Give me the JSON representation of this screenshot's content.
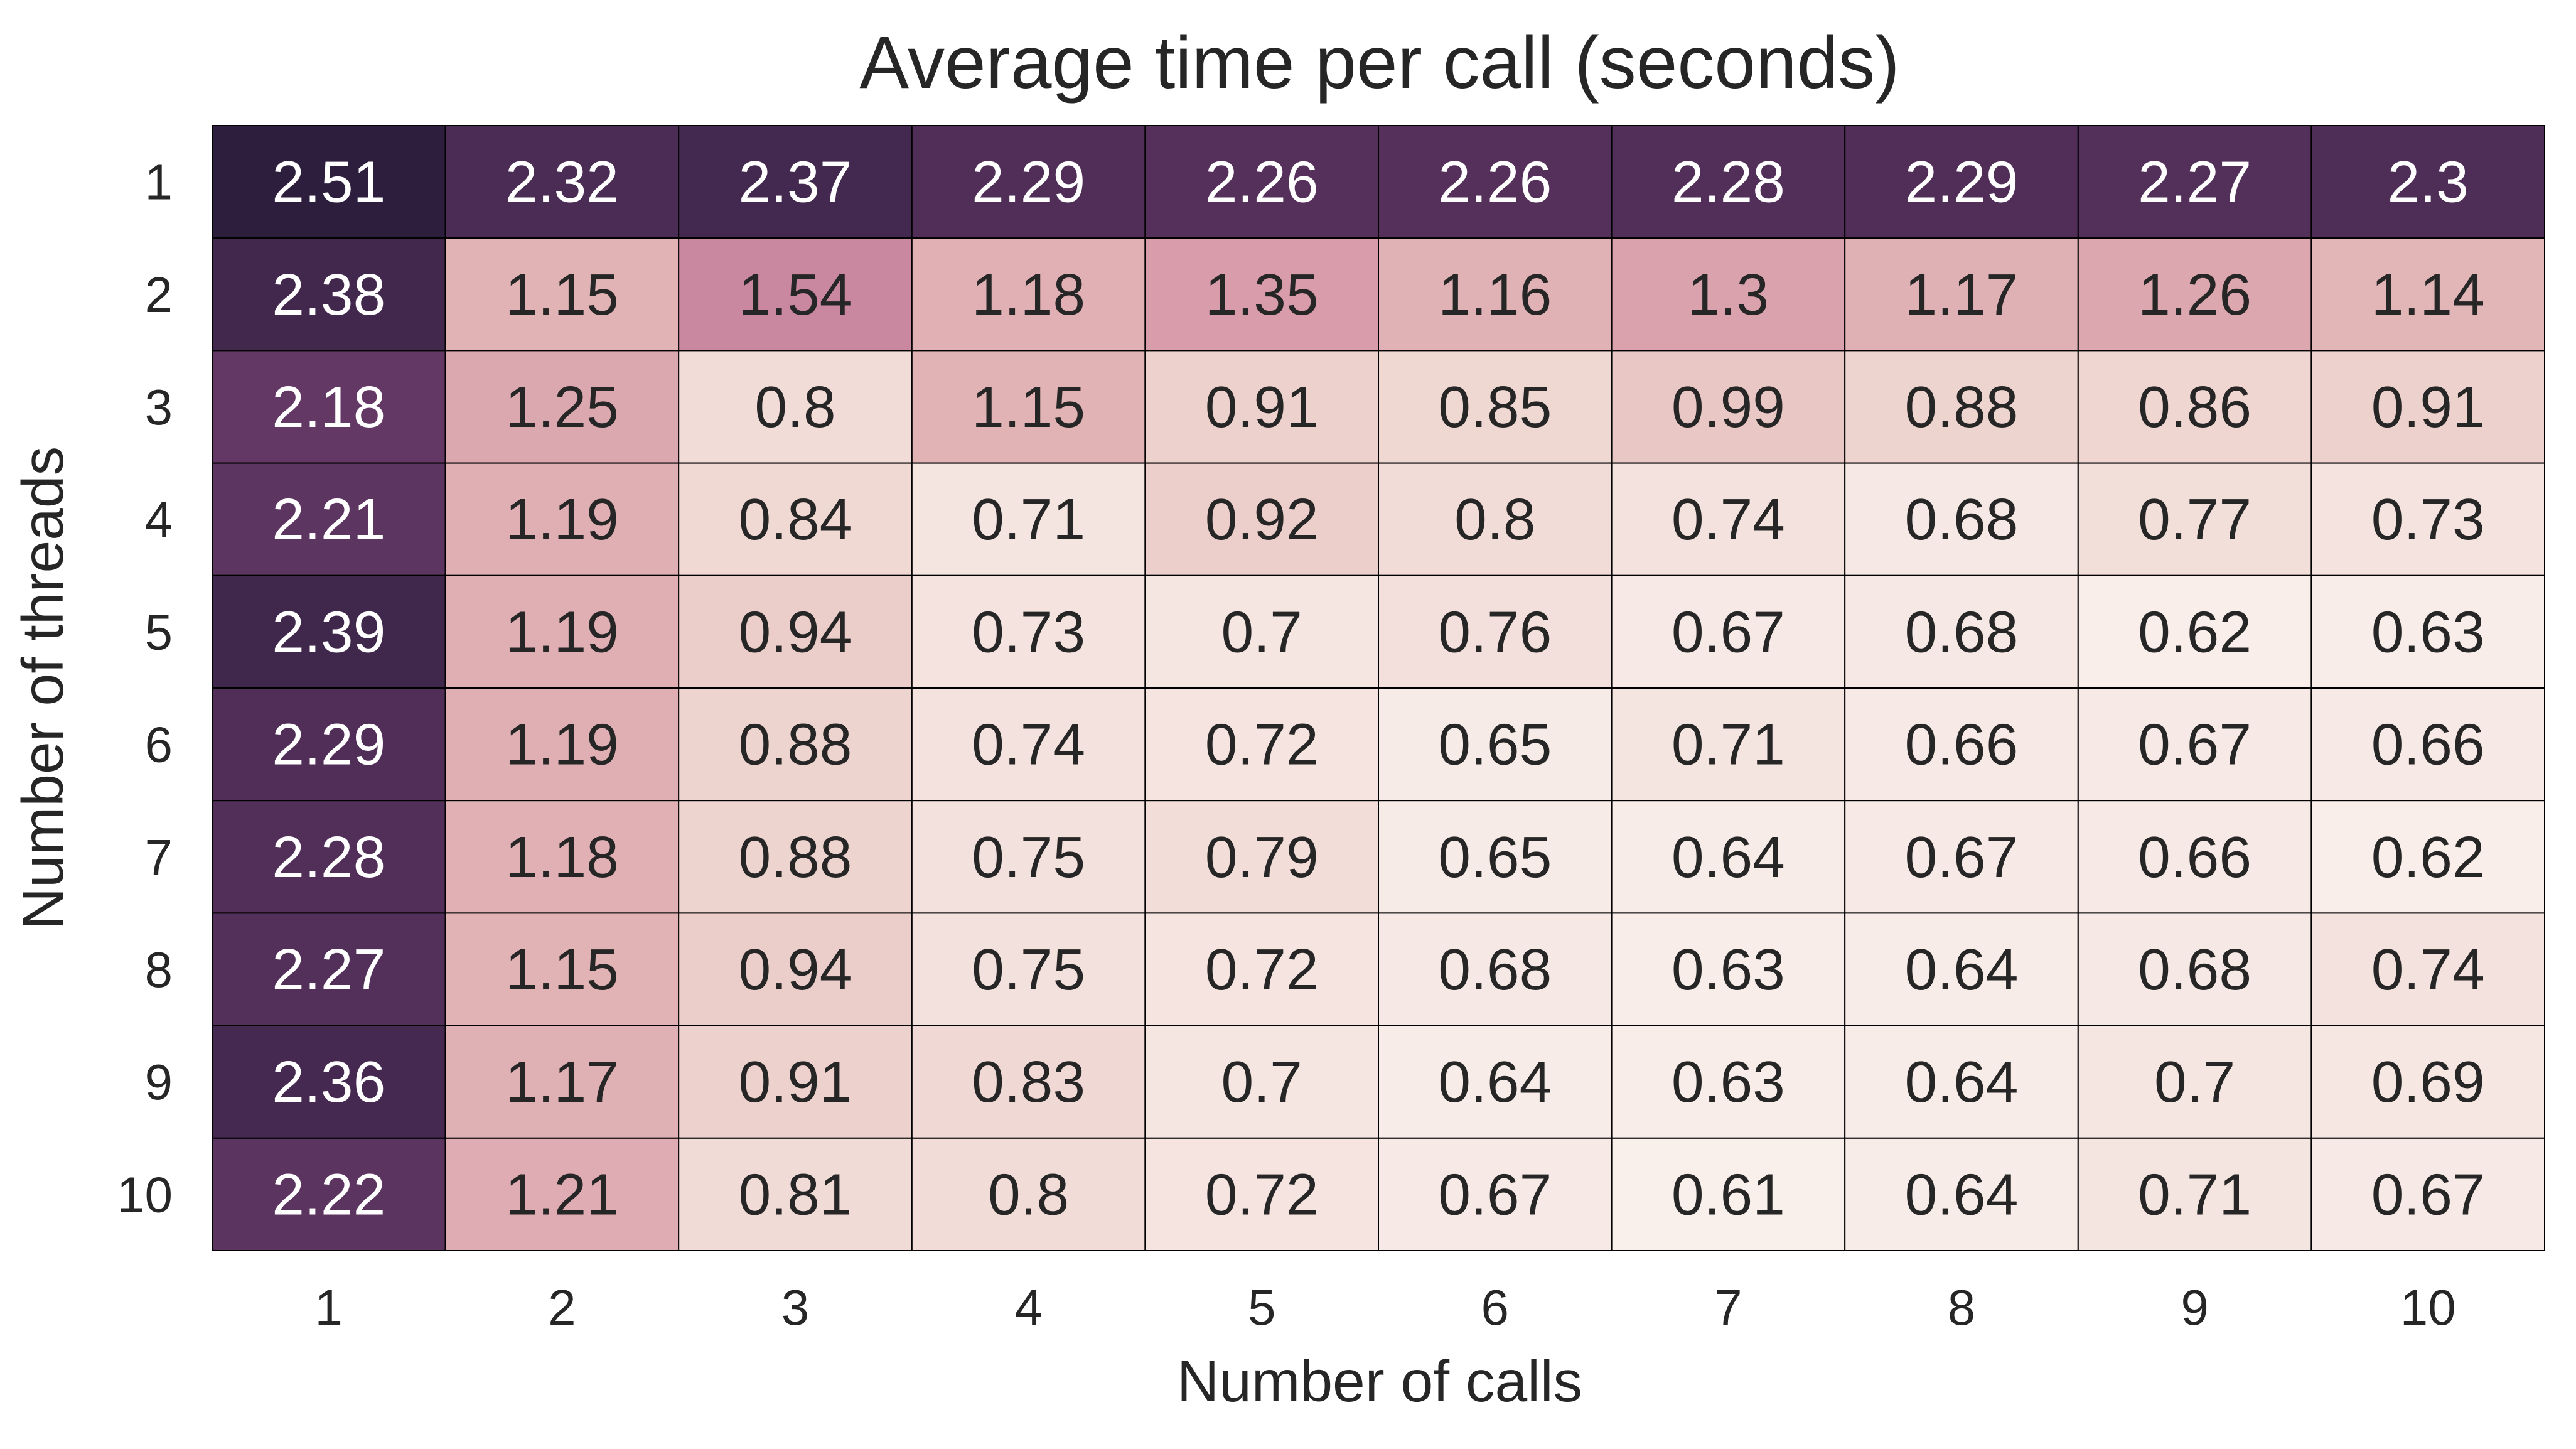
{
  "chart_data": {
    "type": "heatmap",
    "title": "Average time per call (seconds)",
    "xlabel": "Number of calls",
    "ylabel": "Number of threads",
    "x_categories": [
      "1",
      "2",
      "3",
      "4",
      "5",
      "6",
      "7",
      "8",
      "9",
      "10"
    ],
    "y_categories": [
      "1",
      "2",
      "3",
      "4",
      "5",
      "6",
      "7",
      "8",
      "9",
      "10"
    ],
    "values": [
      [
        2.51,
        2.32,
        2.37,
        2.29,
        2.26,
        2.26,
        2.28,
        2.29,
        2.27,
        2.3
      ],
      [
        2.38,
        1.15,
        1.54,
        1.18,
        1.35,
        1.16,
        1.3,
        1.17,
        1.26,
        1.14
      ],
      [
        2.18,
        1.25,
        0.8,
        1.15,
        0.91,
        0.85,
        0.99,
        0.88,
        0.86,
        0.91
      ],
      [
        2.21,
        1.19,
        0.84,
        0.71,
        0.92,
        0.8,
        0.74,
        0.68,
        0.77,
        0.73
      ],
      [
        2.39,
        1.19,
        0.94,
        0.73,
        0.7,
        0.76,
        0.67,
        0.68,
        0.62,
        0.63
      ],
      [
        2.29,
        1.19,
        0.88,
        0.74,
        0.72,
        0.65,
        0.71,
        0.66,
        0.67,
        0.66
      ],
      [
        2.28,
        1.18,
        0.88,
        0.75,
        0.79,
        0.65,
        0.64,
        0.67,
        0.66,
        0.62
      ],
      [
        2.27,
        1.15,
        0.94,
        0.75,
        0.72,
        0.68,
        0.63,
        0.64,
        0.68,
        0.74
      ],
      [
        2.36,
        1.17,
        0.91,
        0.83,
        0.7,
        0.64,
        0.63,
        0.64,
        0.7,
        0.69
      ],
      [
        2.22,
        1.21,
        0.81,
        0.8,
        0.72,
        0.67,
        0.61,
        0.64,
        0.71,
        0.67
      ]
    ],
    "colorscale": [
      "#f9efeb",
      "#eed4cf",
      "#e1b3b5",
      "#d494a6",
      "#bd7698",
      "#8a4f7d",
      "#58325e",
      "#2d1e3e"
    ],
    "annotation_colors": {
      "dark": "#262626",
      "light": "#ffffff"
    },
    "cell_border_color": "#000000",
    "grid": false,
    "legend": "none"
  }
}
